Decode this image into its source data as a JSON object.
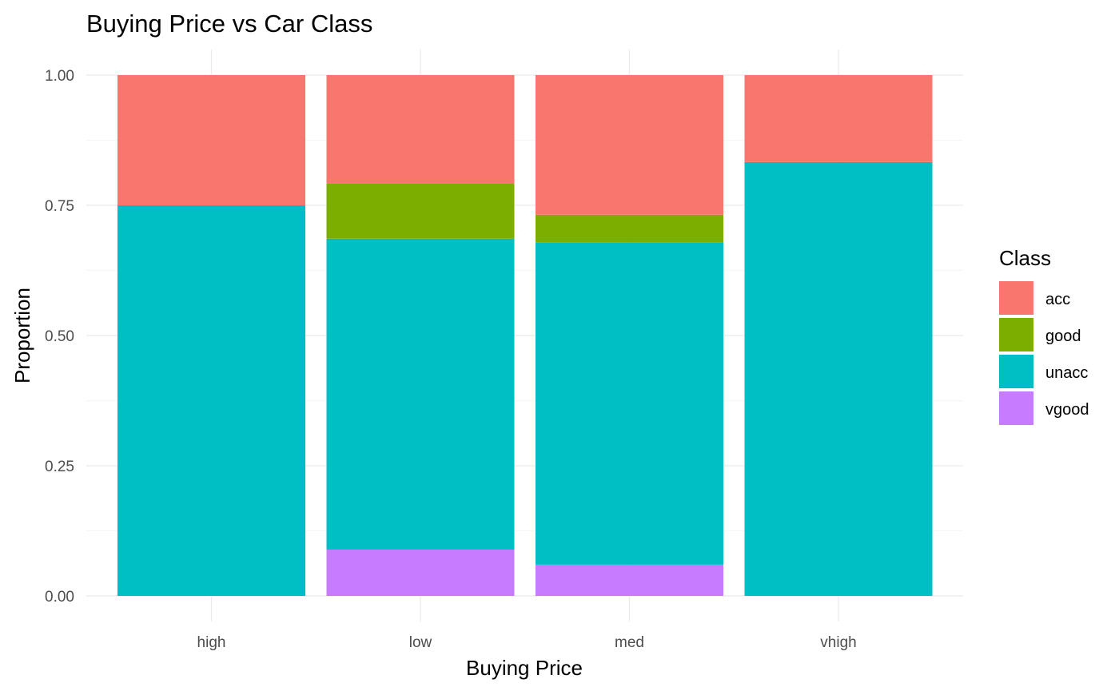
{
  "chart_data": {
    "type": "bar",
    "stacked": true,
    "position": "fill",
    "title": "Buying Price vs Car Class",
    "xlabel": "Buying Price",
    "ylabel": "Proportion",
    "categories": [
      "high",
      "low",
      "med",
      "vhigh"
    ],
    "ylim": [
      0,
      1
    ],
    "yticks": [
      0,
      0.25,
      0.5,
      0.75,
      1.0
    ],
    "ytick_labels": [
      "0.00",
      "0.25",
      "0.50",
      "0.75",
      "1.00"
    ],
    "grid": true,
    "legend": {
      "title": "Class",
      "placement": "right"
    },
    "series": [
      {
        "name": "acc",
        "color": "#F8766D",
        "values": [
          0.25,
          0.208,
          0.268,
          0.167
        ]
      },
      {
        "name": "good",
        "color": "#7CAE00",
        "values": [
          0.0,
          0.106,
          0.053,
          0.0
        ]
      },
      {
        "name": "unacc",
        "color": "#00BFC4",
        "values": [
          0.75,
          0.597,
          0.619,
          0.833
        ]
      },
      {
        "name": "vgood",
        "color": "#C77CFF",
        "values": [
          0.0,
          0.089,
          0.06,
          0.0
        ]
      }
    ]
  }
}
